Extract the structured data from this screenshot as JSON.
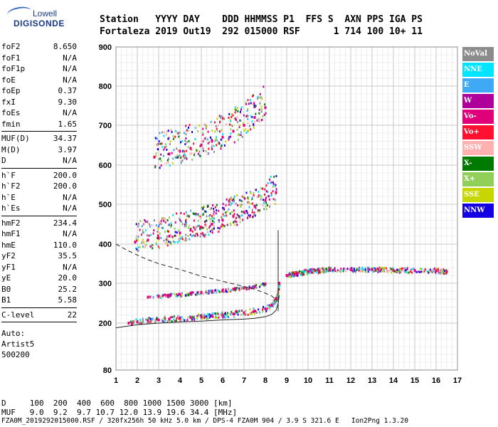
{
  "logo": {
    "line1": "Lowell",
    "line2": "DIGISONDE"
  },
  "header": {
    "labels": "Station   YYYY DAY    DDD HHMMSS P1  FFS S  AXN PPS IGA PS",
    "values": "Fortaleza 2019 Out19  292 015000 RSF      1 714 100 10+ 11"
  },
  "params": {
    "group1": [
      {
        "name": "foF2",
        "value": "8.650"
      },
      {
        "name": "foF1",
        "value": "N/A"
      },
      {
        "name": "foF1p",
        "value": "N/A"
      },
      {
        "name": "foE",
        "value": "N/A"
      },
      {
        "name": "foEp",
        "value": "0.37"
      },
      {
        "name": "fxI",
        "value": "9.30"
      },
      {
        "name": "foEs",
        "value": "N/A"
      },
      {
        "name": "fmin",
        "value": "1.65"
      }
    ],
    "group2": [
      {
        "name": "MUF(D)",
        "value": "34.37"
      },
      {
        "name": "M(D)",
        "value": "3.97"
      },
      {
        "name": "D",
        "value": "N/A"
      }
    ],
    "group3": [
      {
        "name": "h`F",
        "value": "200.0"
      },
      {
        "name": "h`F2",
        "value": "200.0"
      },
      {
        "name": "h`E",
        "value": "N/A"
      },
      {
        "name": "h`Es",
        "value": "N/A"
      }
    ],
    "group4": [
      {
        "name": "hmF2",
        "value": "234.4"
      },
      {
        "name": "hmF1",
        "value": "N/A"
      },
      {
        "name": "hmE",
        "value": "110.0"
      },
      {
        "name": "yF2",
        "value": "35.5"
      },
      {
        "name": "yF1",
        "value": "N/A"
      },
      {
        "name": "yE",
        "value": "20.0"
      },
      {
        "name": "B0",
        "value": "25.2"
      },
      {
        "name": "B1",
        "value": "5.58"
      }
    ],
    "group5": [
      {
        "name": "C-level",
        "value": "22"
      }
    ],
    "auto": [
      "Auto:",
      "Artist5",
      "500200"
    ]
  },
  "legend": [
    {
      "label": "NoVal",
      "color": "#8c8c8c"
    },
    {
      "label": "NNE",
      "color": "#00e5ff"
    },
    {
      "label": "E",
      "color": "#3fa9f5"
    },
    {
      "label": "W",
      "color": "#b0009c"
    },
    {
      "label": "Vo-",
      "color": "#e0007a"
    },
    {
      "label": "Vo+",
      "color": "#ff1030"
    },
    {
      "label": "SSW",
      "color": "#ffb0b0"
    },
    {
      "label": "X-",
      "color": "#007a00"
    },
    {
      "label": "X+",
      "color": "#8fcf5a"
    },
    {
      "label": "SSE",
      "color": "#c8d600"
    },
    {
      "label": "NNW",
      "color": "#1400e0"
    }
  ],
  "footer": {
    "line1": "D     100  200  400  600  800 1000 1500 3000 [km]",
    "line2": "MUF   9.0  9.2  9.7 10.7 12.0 13.9 19.6 34.4 [MHz]",
    "line3": "FZA0M_2019292015000.RSF / 320fx256h 50 kHz 5.0 km / DPS-4 FZA0M 904 / 3.9 S 321.6 E   Ion2Png 1.3.20"
  },
  "chart_data": {
    "type": "scatter",
    "xlim": [
      1,
      17
    ],
    "ylim": [
      80,
      900
    ],
    "x_ticks": [
      1,
      2,
      3,
      4,
      5,
      6,
      7,
      8,
      9,
      10,
      11,
      12,
      13,
      14,
      15,
      16,
      17
    ],
    "y_ticks": [
      80,
      200,
      300,
      400,
      500,
      600,
      700,
      800,
      900
    ],
    "grid": true,
    "traces": [
      {
        "name": "F2 trace",
        "x": [
          1.6,
          2.0,
          2.5,
          3.0,
          3.5,
          4.0,
          4.5,
          5.0,
          5.5,
          6.0,
          6.5,
          7.0,
          7.5,
          8.0,
          8.3,
          8.5,
          8.65
        ],
        "y": [
          200,
          203,
          206,
          208,
          210,
          212,
          214,
          216,
          218,
          220,
          223,
          226,
          230,
          236,
          245,
          262,
          300
        ]
      },
      {
        "name": "F2 echo 2",
        "x": [
          1.9,
          2.5,
          3.0,
          3.5,
          4.0,
          4.5,
          5.0,
          5.5,
          6.0,
          6.5,
          7.0,
          7.5,
          8.0,
          8.5
        ],
        "y": [
          405,
          410,
          415,
          420,
          428,
          435,
          442,
          450,
          460,
          470,
          480,
          495,
          510,
          530
        ]
      },
      {
        "name": "F2 echo 3",
        "x": [
          2.8,
          3.5,
          4.0,
          4.5,
          5.0,
          5.5,
          6.0,
          6.5,
          7.0,
          7.5,
          8.0
        ],
        "y": [
          620,
          628,
          635,
          642,
          650,
          660,
          670,
          685,
          700,
          720,
          745
        ]
      },
      {
        "name": "Spread F",
        "x": [
          9.0,
          9.5,
          10.0,
          10.5,
          11.0,
          12.0,
          13.0,
          14.0,
          15.0,
          16.0,
          16.5
        ],
        "y": [
          320,
          325,
          330,
          332,
          335,
          335,
          335,
          333,
          333,
          332,
          330
        ]
      },
      {
        "name": "Es layer",
        "x": [
          2.5,
          3.0,
          3.5,
          4.0,
          4.5,
          5.0,
          5.5,
          6.0,
          6.5,
          7.0,
          7.5,
          8.0
        ],
        "y": [
          265,
          268,
          270,
          272,
          275,
          277,
          280,
          282,
          285,
          288,
          292,
          298
        ]
      }
    ],
    "profile_solid": {
      "x": [
        1.0,
        2.0,
        3.0,
        4.0,
        5.0,
        6.0,
        7.0,
        7.5,
        8.0,
        8.3,
        8.5,
        8.6,
        8.65
      ],
      "y": [
        188,
        196,
        200,
        203,
        205,
        208,
        210,
        212,
        216,
        222,
        232,
        250,
        270
      ]
    },
    "profile_dashed": {
      "x": [
        1.0,
        1.5,
        2.0,
        2.5,
        3.0,
        4.0,
        5.0,
        6.0,
        7.0,
        7.5,
        8.0,
        8.3,
        8.5
      ],
      "y": [
        400,
        385,
        372,
        360,
        350,
        335,
        318,
        305,
        292,
        285,
        275,
        268,
        258
      ]
    },
    "spike": {
      "x": 8.6,
      "y": [
        230,
        435
      ]
    }
  }
}
